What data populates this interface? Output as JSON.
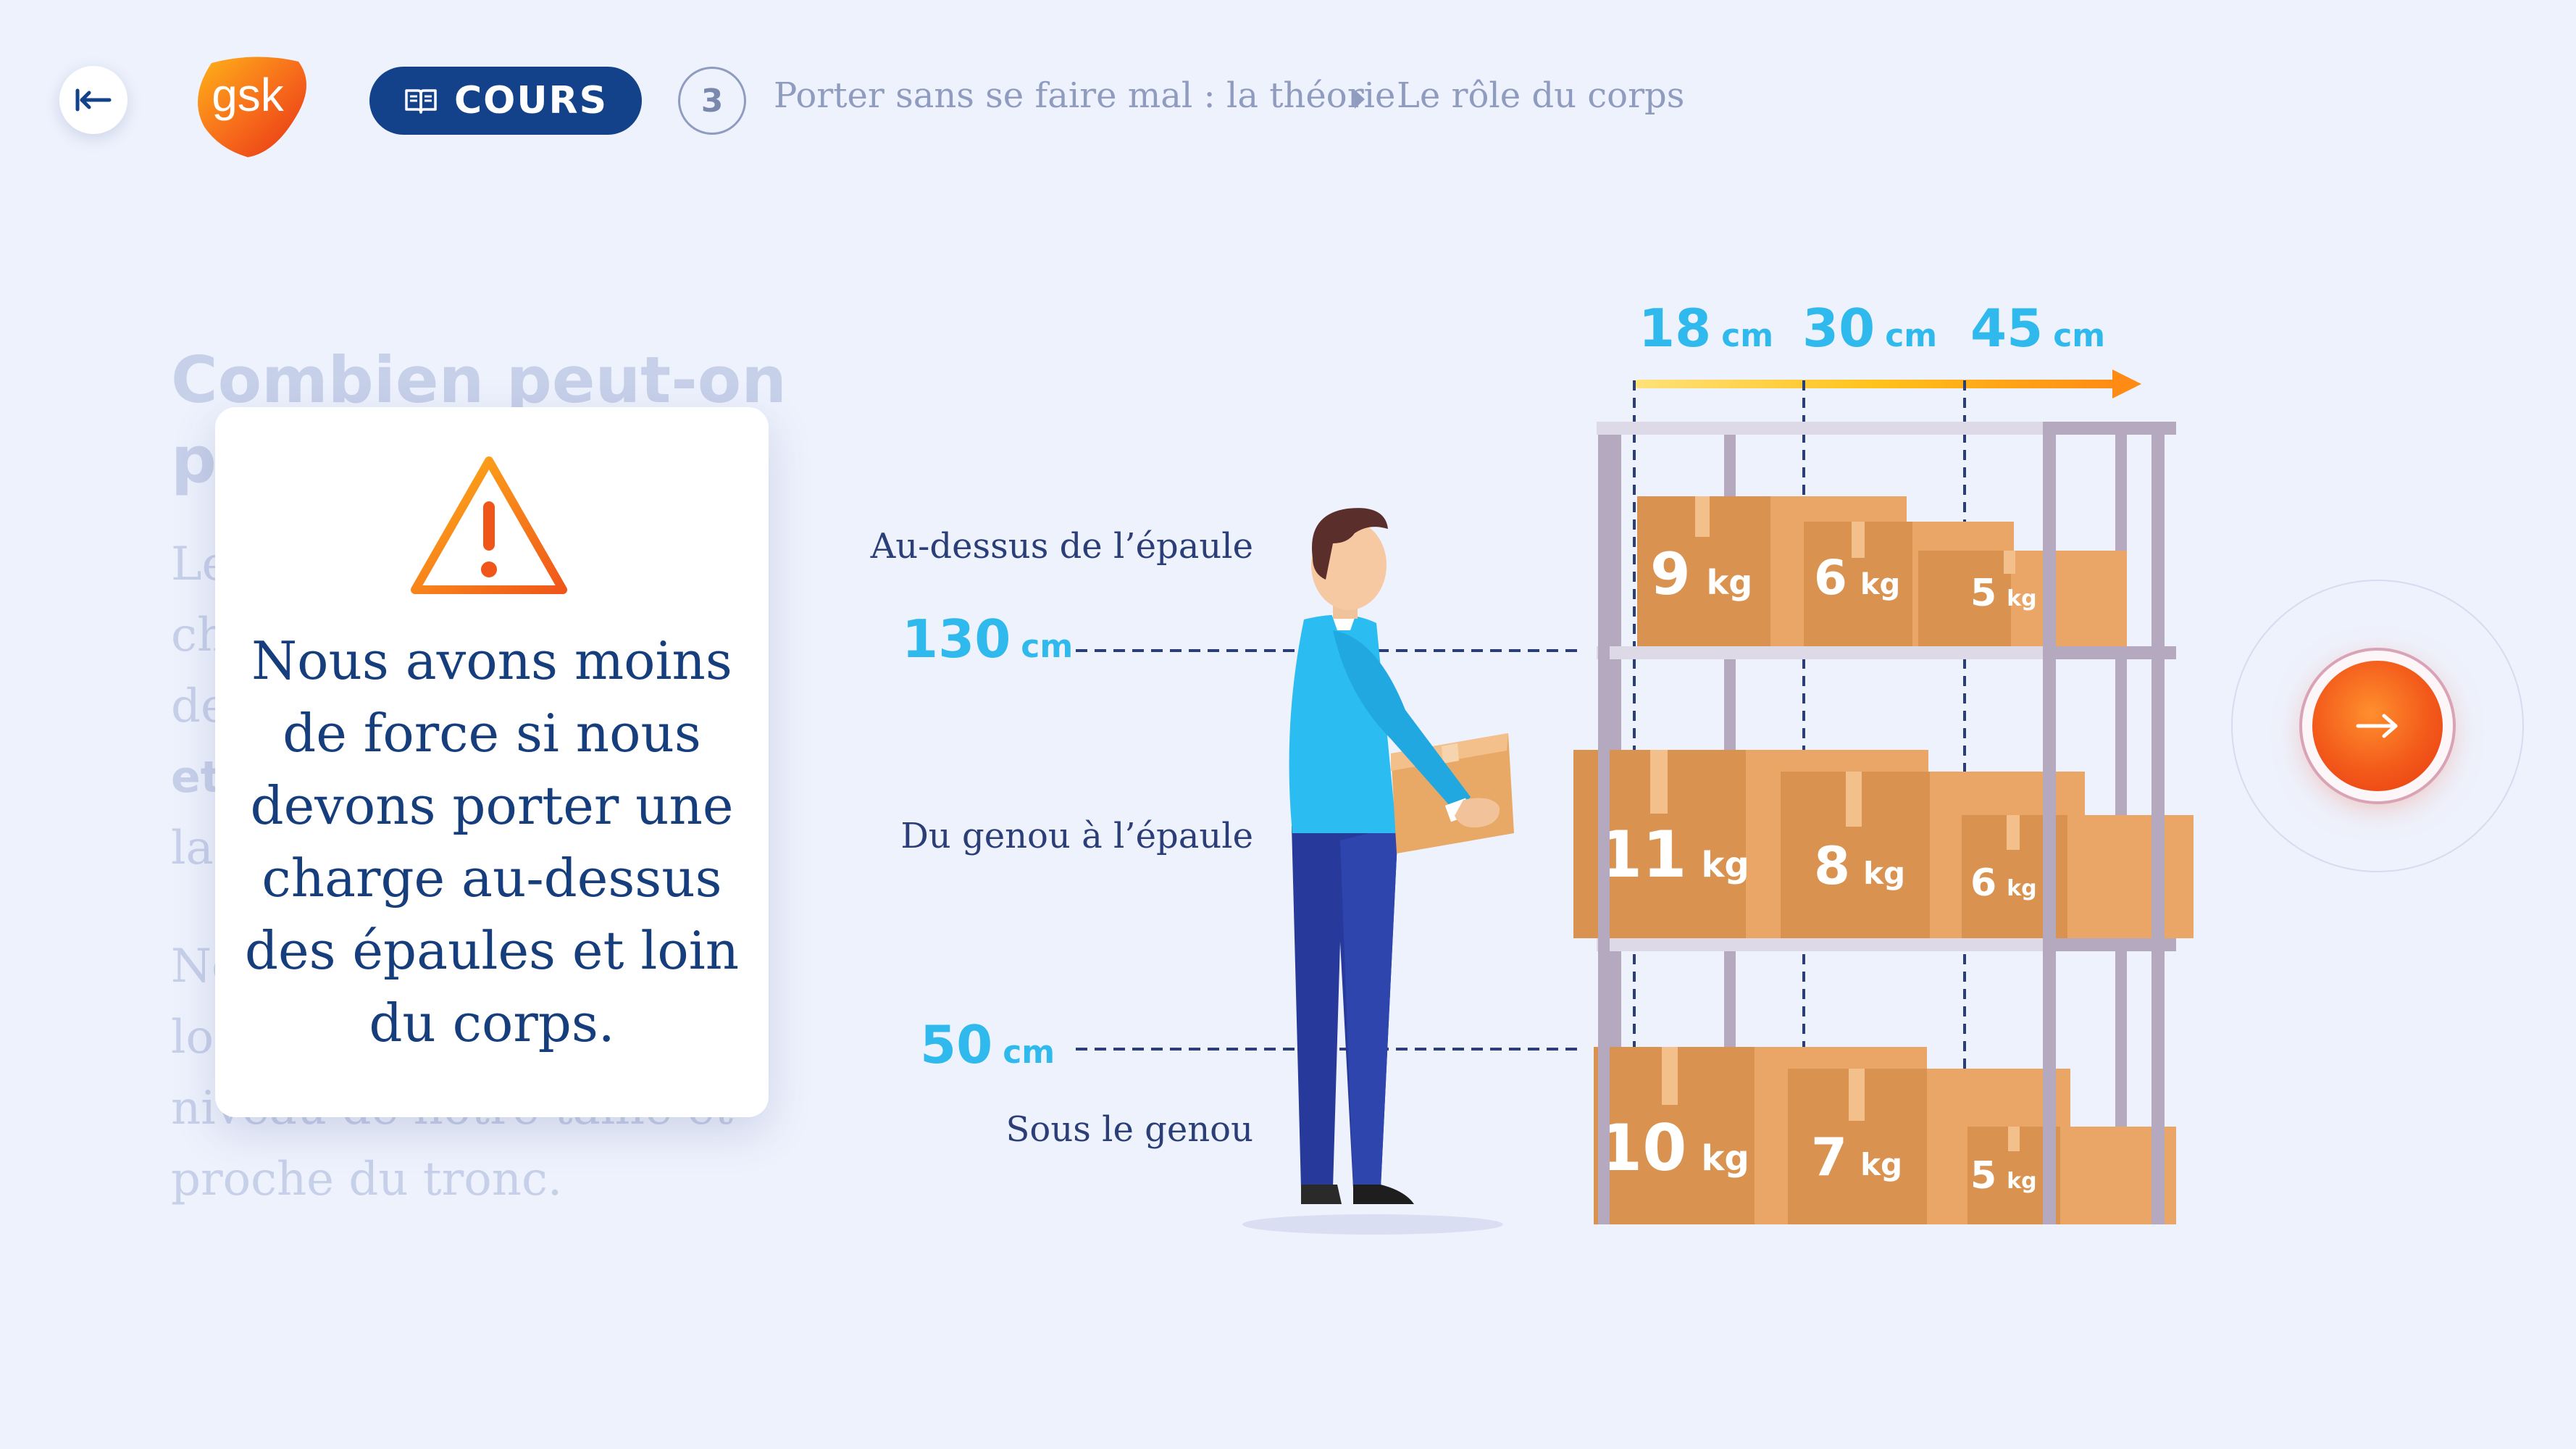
{
  "header": {
    "logo_text": "gsk",
    "cours_label": "COURS",
    "step_number": "3",
    "breadcrumb": [
      "Porter sans se faire mal : la théorie",
      "Le rôle du corps"
    ]
  },
  "background_content": {
    "title_lines": [
      "Combien peut-on",
      "p"
    ],
    "paragraph1_lines": [
      "Le",
      "ch",
      "de",
      "et",
      "la"
    ],
    "paragraph2_lines": [
      "No",
      "lo",
      "niveau de notre taille et",
      "proche du tronc."
    ]
  },
  "warning_card": {
    "icon": "warning-triangle-icon",
    "text_lines": [
      "Nous avons moins",
      "de force si nous",
      "devons porter une",
      "charge au-dessus",
      "des épaules et loin",
      "du corps."
    ]
  },
  "illustration": {
    "zones": {
      "above": "Au-dessus de l’épaule",
      "middle": "Du genou à l’épaule",
      "below": "Sous le genou"
    },
    "heights": [
      {
        "num": "130",
        "unit": "cm"
      },
      {
        "num": "50",
        "unit": "cm"
      }
    ],
    "distances": [
      {
        "num": "18",
        "unit": "cm"
      },
      {
        "num": "30",
        "unit": "cm"
      },
      {
        "num": "45",
        "unit": "cm"
      }
    ],
    "weights": {
      "top": [
        {
          "num": "9",
          "unit": "kg"
        },
        {
          "num": "6",
          "unit": "kg"
        },
        {
          "num": "5",
          "unit": "kg"
        }
      ],
      "middle": [
        {
          "num": "11",
          "unit": "kg"
        },
        {
          "num": "8",
          "unit": "kg"
        },
        {
          "num": "6",
          "unit": "kg"
        }
      ],
      "bottom": [
        {
          "num": "10",
          "unit": "kg"
        },
        {
          "num": "7",
          "unit": "kg"
        },
        {
          "num": "5",
          "unit": "kg"
        }
      ]
    }
  },
  "navigation": {
    "back_icon": "back-arrow-icon",
    "next_icon": "next-arrow-icon"
  },
  "colors": {
    "background": "#eef2fd",
    "navy": "#13428a",
    "accent_blue": "#2fb9ec",
    "orange": "#f35a1a",
    "box": "#d9924f"
  }
}
